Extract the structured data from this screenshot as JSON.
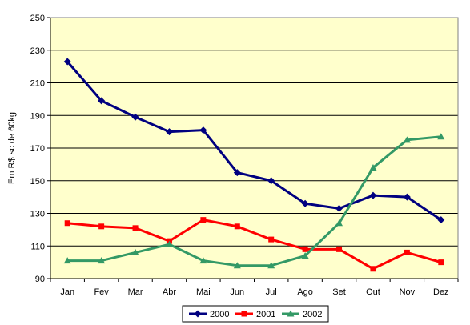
{
  "chart_data": {
    "type": "line",
    "title": "",
    "xlabel": "",
    "ylabel": "Em R$ sc de 60kg",
    "categories": [
      "Jan",
      "Fev",
      "Mar",
      "Abr",
      "Mai",
      "Jun",
      "Jul",
      "Ago",
      "Set",
      "Out",
      "Nov",
      "Dez"
    ],
    "ylim": [
      90,
      250
    ],
    "yticks": [
      "90",
      "110",
      "130",
      "150",
      "170",
      "190",
      "210",
      "230",
      "250"
    ],
    "grid": "horizontal",
    "legend_position": "bottom",
    "plot_background": "#FFFFCC",
    "series": [
      {
        "name": "2000",
        "color": "#000080",
        "marker": "diamond",
        "values": [
          223,
          199,
          189,
          180,
          181,
          155,
          150,
          136,
          133,
          141,
          140,
          126
        ]
      },
      {
        "name": "2001",
        "color": "#FF0000",
        "marker": "square",
        "values": [
          124,
          122,
          121,
          113,
          126,
          122,
          114,
          108,
          108,
          96,
          106,
          100
        ]
      },
      {
        "name": "2002",
        "color": "#339966",
        "marker": "triangle",
        "values": [
          101,
          101,
          106,
          111,
          101,
          98,
          98,
          104,
          124,
          158,
          175,
          177
        ]
      }
    ]
  }
}
